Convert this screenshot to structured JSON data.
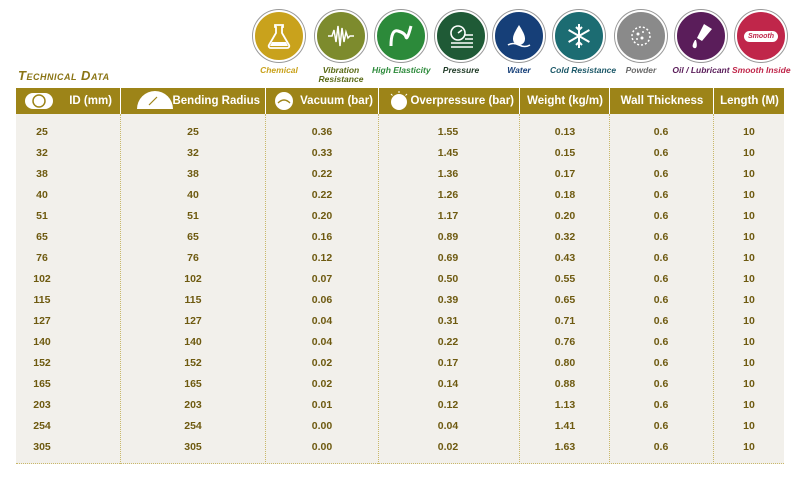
{
  "icons": [
    {
      "name": "chemical-icon",
      "label": "Chemical",
      "color": "#c9a21c",
      "label_color": "#c9a21c"
    },
    {
      "name": "vibration-resistance-icon",
      "label": "Vibration Resistance",
      "color": "#7d8b2d",
      "label_color": "#5a6a16"
    },
    {
      "name": "high-elasticity-icon",
      "label": "High Elasticity",
      "color": "#2c8a3a",
      "label_color": "#2c8a3a"
    },
    {
      "name": "pressure-icon",
      "label": "Pressure",
      "color": "#1f5a36",
      "label_color": "#1f3a26"
    },
    {
      "name": "water-icon",
      "label": "Water",
      "color": "#163f78",
      "label_color": "#163f78"
    },
    {
      "name": "cold-resistance-icon",
      "label": "Cold Resistance",
      "color": "#1c6c72",
      "label_color": "#1c5868"
    },
    {
      "name": "powder-icon",
      "label": "Powder",
      "color": "#8a8a8a",
      "label_color": "#6a6a6a"
    },
    {
      "name": "oil-lubricant-icon",
      "label": "Oil / Lubricant",
      "color": "#5a1d5a",
      "label_color": "#5a1d5a"
    },
    {
      "name": "smooth-inside-icon",
      "label": "Smooth Inside",
      "color": "#c0264a",
      "label_color": "#c0264a",
      "badge": "Smooth"
    }
  ],
  "section_title": "Technical Data",
  "columns": [
    {
      "key": "id",
      "label": "ID (mm)"
    },
    {
      "key": "bend",
      "label": "Bending Radius"
    },
    {
      "key": "vac",
      "label": "Vacuum (bar)"
    },
    {
      "key": "over",
      "label": "Overpressure (bar)"
    },
    {
      "key": "weight",
      "label": "Weight (kg/m)"
    },
    {
      "key": "wall",
      "label": "Wall Thickness"
    },
    {
      "key": "len",
      "label": "Length (M)"
    }
  ],
  "rows": [
    [
      "25",
      "25",
      "0.36",
      "1.55",
      "0.13",
      "0.6",
      "10"
    ],
    [
      "32",
      "32",
      "0.33",
      "1.45",
      "0.15",
      "0.6",
      "10"
    ],
    [
      "38",
      "38",
      "0.22",
      "1.36",
      "0.17",
      "0.6",
      "10"
    ],
    [
      "40",
      "40",
      "0.22",
      "1.26",
      "0.18",
      "0.6",
      "10"
    ],
    [
      "51",
      "51",
      "0.20",
      "1.17",
      "0.20",
      "0.6",
      "10"
    ],
    [
      "65",
      "65",
      "0.16",
      "0.89",
      "0.32",
      "0.6",
      "10"
    ],
    [
      "76",
      "76",
      "0.12",
      "0.69",
      "0.43",
      "0.6",
      "10"
    ],
    [
      "102",
      "102",
      "0.07",
      "0.50",
      "0.55",
      "0.6",
      "10"
    ],
    [
      "115",
      "115",
      "0.06",
      "0.39",
      "0.65",
      "0.6",
      "10"
    ],
    [
      "127",
      "127",
      "0.04",
      "0.31",
      "0.71",
      "0.6",
      "10"
    ],
    [
      "140",
      "140",
      "0.04",
      "0.22",
      "0.76",
      "0.6",
      "10"
    ],
    [
      "152",
      "152",
      "0.02",
      "0.17",
      "0.80",
      "0.6",
      "10"
    ],
    [
      "165",
      "165",
      "0.02",
      "0.14",
      "0.88",
      "0.6",
      "10"
    ],
    [
      "203",
      "203",
      "0.01",
      "0.12",
      "1.13",
      "0.6",
      "10"
    ],
    [
      "254",
      "254",
      "0.00",
      "0.04",
      "1.41",
      "0.6",
      "10"
    ],
    [
      "305",
      "305",
      "0.00",
      "0.02",
      "1.63",
      "0.6",
      "10"
    ]
  ],
  "colors": {
    "header_bg": "#9d8418",
    "row_bg": "#f2f0eb",
    "text": "#6e5a10",
    "title": "#8a7414"
  }
}
